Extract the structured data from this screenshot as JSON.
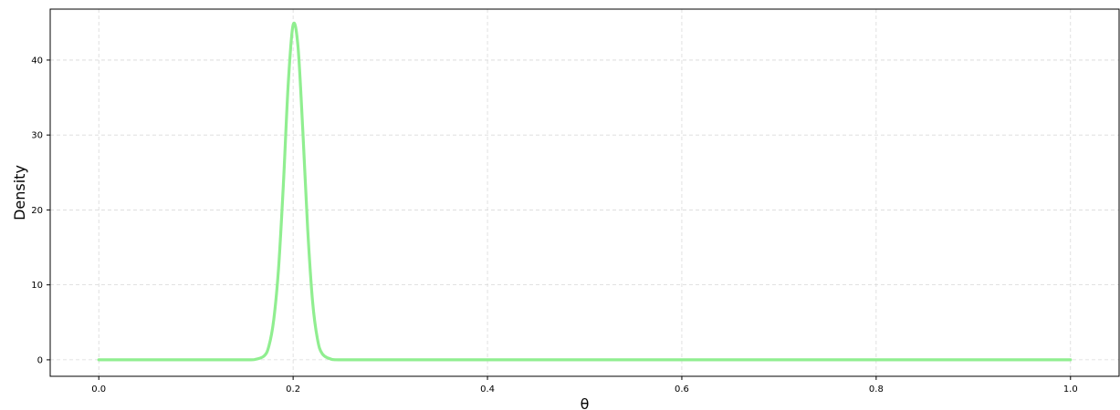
{
  "chart_data": {
    "type": "line",
    "title": "",
    "xlabel": "θ",
    "ylabel": "Density",
    "xlim": [
      -0.05,
      1.05
    ],
    "ylim": [
      -2.2,
      46.8
    ],
    "x_ticks": [
      0.0,
      0.2,
      0.4,
      0.6,
      0.8,
      1.0
    ],
    "x_tick_labels": [
      "0.0",
      "0.2",
      "0.4",
      "0.6",
      "0.8",
      "1.0"
    ],
    "y_ticks": [
      0,
      10,
      20,
      30,
      40
    ],
    "y_tick_labels": [
      "0",
      "10",
      "20",
      "30",
      "40"
    ],
    "grid": true,
    "grid_style": "dashed",
    "legend": "none",
    "series": [
      {
        "color": "#90ee90",
        "x": [
          0.0,
          0.1,
          0.15,
          0.16,
          0.17,
          0.175,
          0.18,
          0.185,
          0.19,
          0.195,
          0.2,
          0.205,
          0.21,
          0.215,
          0.22,
          0.225,
          0.23,
          0.24,
          0.25,
          0.3,
          0.4,
          0.6,
          0.8,
          1.0
        ],
        "y": [
          0.0,
          0.0,
          0.0,
          0.03,
          0.5,
          1.8,
          5.3,
          12.2,
          23.5,
          36.9,
          44.7,
          41.8,
          30.5,
          17.4,
          7.8,
          2.8,
          0.8,
          0.05,
          0.0,
          0.0,
          0.0,
          0.0,
          0.0,
          0.0
        ]
      }
    ]
  }
}
